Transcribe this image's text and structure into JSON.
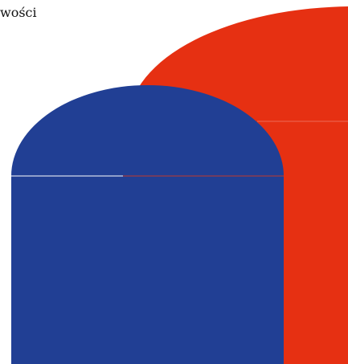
{
  "heading": {
    "text": "wości"
  }
}
